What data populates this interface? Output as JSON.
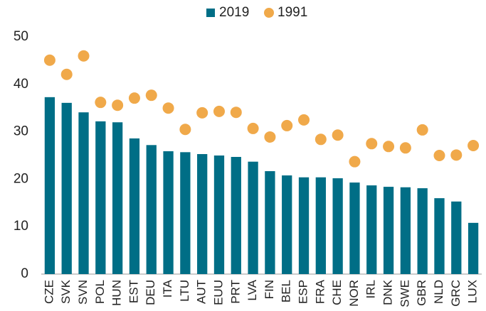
{
  "chart_data": {
    "type": "bar",
    "categories": [
      "CZE",
      "SVK",
      "SVN",
      "POL",
      "HUN",
      "EST",
      "DEU",
      "ITA",
      "LTU",
      "AUT",
      "EUU",
      "PRT",
      "LVA",
      "FIN",
      "BEL",
      "ESP",
      "FRA",
      "CHE",
      "NOR",
      "IRL",
      "DNK",
      "SWE",
      "GBR",
      "NLD",
      "GRC",
      "LUX"
    ],
    "series": [
      {
        "name": "2019",
        "type": "bar",
        "color": "#006e86",
        "values": [
          37.3,
          36.1,
          34.1,
          32.2,
          32.0,
          28.6,
          27.2,
          25.9,
          25.7,
          25.3,
          25.0,
          24.7,
          23.7,
          21.7,
          20.8,
          20.4,
          20.4,
          20.2,
          19.3,
          18.7,
          18.4,
          18.3,
          18.1,
          16.0,
          15.3,
          10.8
        ]
      },
      {
        "name": "1991",
        "type": "scatter",
        "color": "#f0a94a",
        "values": [
          45.1,
          42.1,
          46.0,
          36.2,
          35.6,
          37.1,
          37.7,
          35.0,
          30.5,
          34.0,
          34.3,
          34.1,
          30.7,
          28.9,
          31.3,
          32.5,
          28.4,
          29.3,
          23.7,
          27.5,
          26.9,
          26.6,
          30.4,
          25.0,
          25.1,
          27.1
        ]
      }
    ],
    "ylim": [
      0,
      50
    ],
    "yticks": [
      0,
      10,
      20,
      30,
      40,
      50
    ],
    "grid": false,
    "legend": "top"
  }
}
